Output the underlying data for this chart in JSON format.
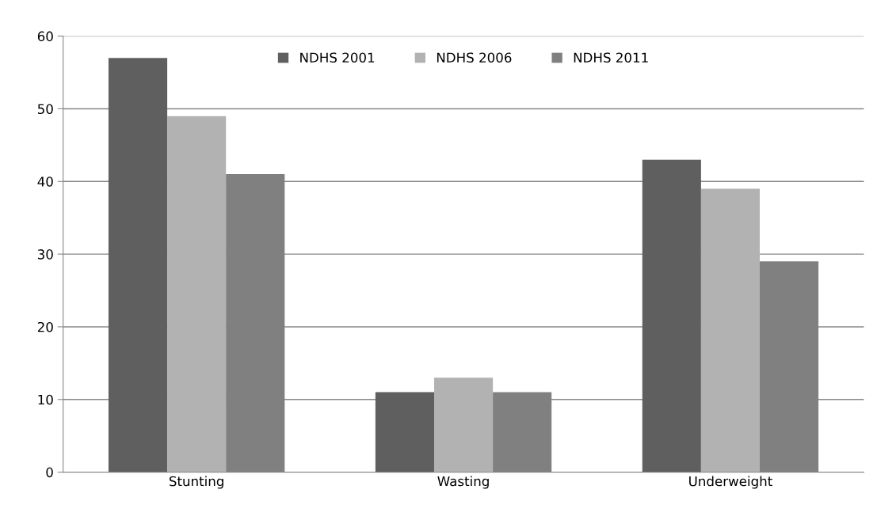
{
  "chart_data": {
    "type": "bar",
    "categories": [
      "Stunting",
      "Wasting",
      "Underweight"
    ],
    "series": [
      {
        "name": "NDHS 2001",
        "color": "#5f5f5f",
        "values": [
          57,
          11,
          43
        ]
      },
      {
        "name": "NDHS 2006",
        "color": "#b2b2b2",
        "values": [
          49,
          13,
          39
        ]
      },
      {
        "name": "NDHS 2011",
        "color": "#808080",
        "values": [
          41,
          11,
          29
        ]
      }
    ],
    "ylim": [
      0,
      60
    ],
    "yticks": [
      0,
      10,
      20,
      30,
      40,
      50,
      60
    ],
    "grid": "y",
    "legend": "top"
  }
}
